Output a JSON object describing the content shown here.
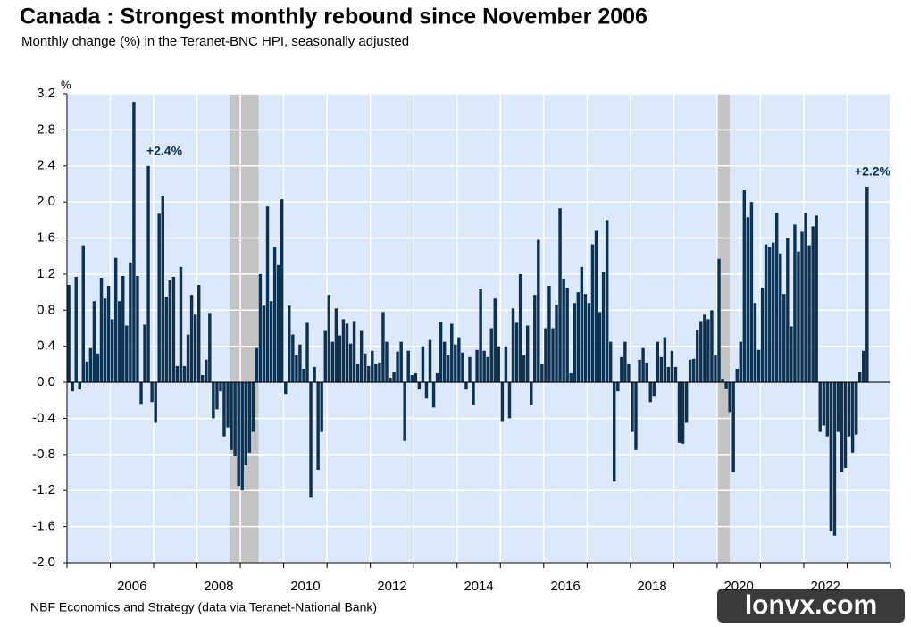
{
  "chart_data": {
    "type": "bar",
    "title": "Canada : Strongest monthly rebound since November 2006",
    "subtitle": "Monthly change (%) in the Teranet-BNC HPI, seasonally adjusted",
    "y_unit": "%",
    "source": "NBF Economics and Strategy (data via Teranet-National Bank)",
    "watermark": "lonvx.com",
    "color": "#0d3150",
    "background": "#dce9fa",
    "shade_color": "#c4c4c4",
    "shaded_periods": [
      [
        2008.75,
        2009.42
      ],
      [
        2020.0,
        2020.29
      ]
    ],
    "xlim": [
      2005,
      2024
    ],
    "ylim": [
      -2.0,
      3.2
    ],
    "yticks": [
      3.2,
      2.8,
      2.4,
      {
        "value": 2.0,
        "label": "2.0"
      },
      1.6,
      1.2,
      0.8,
      0.4,
      {
        "value": 0,
        "label": "0.0"
      },
      -0.4,
      -0.8,
      -1.2,
      -1.6,
      {
        "value": -2.0,
        "label": "-2.0"
      }
    ],
    "xticks": [
      {
        "value": 2006.5,
        "label": "2006"
      },
      {
        "value": 2008.5,
        "label": "2008"
      },
      {
        "value": 2010.5,
        "label": "2010"
      },
      {
        "value": 2012.5,
        "label": "2012"
      },
      {
        "value": 2014.5,
        "label": "2014"
      },
      {
        "value": 2016.5,
        "label": "2016"
      },
      {
        "value": 2018.5,
        "label": "2018"
      },
      {
        "value": 2020.5,
        "label": "2020"
      },
      {
        "value": 2022.5,
        "label": "2022"
      }
    ],
    "xgrid": [
      2005,
      2006,
      2007,
      2008,
      2009,
      2010,
      2011,
      2012,
      2013,
      2014,
      2015,
      2016,
      2017,
      2018,
      2019,
      2020,
      2021,
      2022,
      2023,
      2024
    ],
    "grid": true,
    "x": [
      2005,
      2005.083,
      2005.167,
      2005.25,
      2005.333,
      2005.417,
      2005.5,
      2005.583,
      2005.667,
      2005.75,
      2005.833,
      2005.917,
      2006,
      2006.083,
      2006.167,
      2006.25,
      2006.333,
      2006.417,
      2006.5,
      2006.583,
      2006.667,
      2006.75,
      2006.833,
      2006.917,
      2007,
      2007.083,
      2007.167,
      2007.25,
      2007.333,
      2007.417,
      2007.5,
      2007.583,
      2007.667,
      2007.75,
      2007.833,
      2007.917,
      2008,
      2008.083,
      2008.167,
      2008.25,
      2008.333,
      2008.417,
      2008.5,
      2008.583,
      2008.667,
      2008.75,
      2008.833,
      2008.917,
      2009,
      2009.083,
      2009.167,
      2009.25,
      2009.333,
      2009.417,
      2009.5,
      2009.583,
      2009.667,
      2009.75,
      2009.833,
      2009.917,
      2010,
      2010.083,
      2010.167,
      2010.25,
      2010.333,
      2010.417,
      2010.5,
      2010.583,
      2010.667,
      2010.75,
      2010.833,
      2010.917,
      2011,
      2011.083,
      2011.167,
      2011.25,
      2011.333,
      2011.417,
      2011.5,
      2011.583,
      2011.667,
      2011.75,
      2011.833,
      2011.917,
      2012,
      2012.083,
      2012.167,
      2012.25,
      2012.333,
      2012.417,
      2012.5,
      2012.583,
      2012.667,
      2012.75,
      2012.833,
      2012.917,
      2013,
      2013.083,
      2013.167,
      2013.25,
      2013.333,
      2013.417,
      2013.5,
      2013.583,
      2013.667,
      2013.75,
      2013.833,
      2013.917,
      2014,
      2014.083,
      2014.167,
      2014.25,
      2014.333,
      2014.417,
      2014.5,
      2014.583,
      2014.667,
      2014.75,
      2014.833,
      2014.917,
      2015,
      2015.083,
      2015.167,
      2015.25,
      2015.333,
      2015.417,
      2015.5,
      2015.583,
      2015.667,
      2015.75,
      2015.833,
      2015.917,
      2016,
      2016.083,
      2016.167,
      2016.25,
      2016.333,
      2016.417,
      2016.5,
      2016.583,
      2016.667,
      2016.75,
      2016.833,
      2016.917,
      2017,
      2017.083,
      2017.167,
      2017.25,
      2017.333,
      2017.417,
      2017.5,
      2017.583,
      2017.667,
      2017.75,
      2017.833,
      2017.917,
      2018,
      2018.083,
      2018.167,
      2018.25,
      2018.333,
      2018.417,
      2018.5,
      2018.583,
      2018.667,
      2018.75,
      2018.833,
      2018.917,
      2019,
      2019.083,
      2019.167,
      2019.25,
      2019.333,
      2019.417,
      2019.5,
      2019.583,
      2019.667,
      2019.75,
      2019.833,
      2019.917,
      2020,
      2020.083,
      2020.167,
      2020.25,
      2020.333,
      2020.417,
      2020.5,
      2020.583,
      2020.667,
      2020.75,
      2020.833,
      2020.917,
      2021,
      2021.083,
      2021.167,
      2021.25,
      2021.333,
      2021.417,
      2021.5,
      2021.583,
      2021.667,
      2021.75,
      2021.833,
      2021.917,
      2022,
      2022.083,
      2022.167,
      2022.25,
      2022.333,
      2022.417,
      2022.5,
      2022.583,
      2022.667,
      2022.75,
      2022.833,
      2022.917,
      2023,
      2023.083,
      2023.167,
      2023.25,
      2023.333,
      2023.417
    ],
    "values": [
      1.08,
      -0.1,
      1.17,
      -0.08,
      1.52,
      0.23,
      0.38,
      0.9,
      0.32,
      1.16,
      0.93,
      1.07,
      0.7,
      1.38,
      0.9,
      1.18,
      0.63,
      1.33,
      3.11,
      1.18,
      -0.24,
      0.64,
      2.4,
      -0.22,
      -0.45,
      1.87,
      2.07,
      0.95,
      1.13,
      1.17,
      0.18,
      1.28,
      0.18,
      0.53,
      0.97,
      0.75,
      1.08,
      0.08,
      0.25,
      0.77,
      -0.4,
      -0.3,
      -0.1,
      -0.6,
      -0.5,
      -0.75,
      -0.82,
      -1.15,
      -1.2,
      -0.92,
      -0.78,
      -0.55,
      0.38,
      1.2,
      0.85,
      1.95,
      0.9,
      1.5,
      1.3,
      2.03,
      -0.13,
      0.85,
      0.53,
      0.3,
      0.42,
      0.15,
      0.66,
      -1.28,
      0.17,
      -0.97,
      -0.55,
      0.57,
      0.97,
      0.45,
      0.82,
      0.52,
      0.7,
      0.65,
      0.43,
      0.68,
      0.2,
      0.57,
      0.32,
      0.18,
      0.35,
      0.2,
      0.22,
      0.78,
      0.45,
      0.05,
      0.12,
      0.34,
      0.45,
      -0.65,
      0.35,
      0.08,
      0.1,
      -0.08,
      0.4,
      -0.18,
      0.47,
      -0.28,
      0.1,
      0.67,
      0.45,
      0.3,
      0.65,
      0.42,
      0.5,
      0.33,
      -0.08,
      0.28,
      -0.25,
      0.36,
      1.03,
      0.35,
      0.28,
      0.6,
      0.93,
      0.4,
      -0.43,
      0.4,
      -0.4,
      0.82,
      0.66,
      1.2,
      0.3,
      0.63,
      -0.25,
      0.97,
      1.58,
      0.2,
      0.6,
      1.07,
      0.6,
      0.86,
      1.93,
      1.15,
      1.05,
      0.1,
      0.88,
      1.0,
      1.28,
      0.98,
      0.88,
      1.53,
      1.68,
      0.78,
      1.22,
      1.8,
      0.45,
      -1.1,
      -0.1,
      0.28,
      0.45,
      0.2,
      -0.55,
      -0.75,
      0.25,
      0.38,
      0.22,
      -0.22,
      -0.15,
      0.45,
      0.28,
      0.5,
      0.17,
      0.35,
      0.17,
      -0.67,
      -0.68,
      -0.45,
      0.25,
      0.26,
      0.58,
      0.68,
      0.75,
      0.7,
      0.8,
      0.3,
      1.37,
      0.04,
      -0.07,
      -0.33,
      -1.0,
      0.15,
      0.45,
      2.13,
      1.83,
      2.0,
      0.88,
      0.36,
      1.05,
      1.53,
      1.5,
      1.55,
      1.88,
      1.43,
      0.98,
      1.6,
      0.62,
      1.75,
      1.45,
      1.67,
      1.88,
      1.52,
      1.73,
      1.85,
      -0.55,
      -0.48,
      -0.6,
      -1.65,
      -1.7,
      -0.55,
      -1.0,
      -0.95,
      -0.6,
      -0.78,
      -0.58,
      0.12,
      0.35,
      2.17
    ],
    "value_labels": [
      null,
      null,
      null,
      null,
      null,
      null,
      null,
      null,
      null,
      null,
      null,
      null,
      null,
      null,
      null,
      null,
      null,
      null,
      null,
      null,
      null,
      null,
      "+2.4%",
      null,
      null,
      null,
      null,
      null,
      null,
      null,
      null,
      null,
      null,
      null,
      null,
      null,
      null,
      null,
      null,
      null,
      null,
      null,
      null,
      null,
      null,
      null,
      null,
      null,
      null,
      null,
      null,
      null,
      null,
      null,
      null,
      null,
      null,
      null,
      null,
      null,
      null,
      null,
      null,
      null,
      null,
      null,
      null,
      null,
      null,
      null,
      null,
      null,
      null,
      null,
      null,
      null,
      null,
      null,
      null,
      null,
      null,
      null,
      null,
      null,
      null,
      null,
      null,
      null,
      null,
      null,
      null,
      null,
      null,
      null,
      null,
      null,
      null,
      null,
      null,
      null,
      null,
      null,
      null,
      null,
      null,
      null,
      null,
      null,
      null,
      null,
      null,
      null,
      null,
      null,
      null,
      null,
      null,
      null,
      null,
      null,
      null,
      null,
      null,
      null,
      null,
      null,
      null,
      null,
      null,
      null,
      null,
      null,
      null,
      null,
      null,
      null,
      null,
      null,
      null,
      null,
      null,
      null,
      null,
      null,
      null,
      null,
      null,
      null,
      null,
      null,
      null,
      null,
      null,
      null,
      null,
      null,
      null,
      null,
      null,
      null,
      null,
      null,
      null,
      null,
      null,
      null,
      null,
      null,
      null,
      null,
      null,
      null,
      null,
      null,
      null,
      null,
      null,
      null,
      null,
      null,
      null,
      null,
      null,
      null,
      null,
      null,
      null,
      null,
      null,
      null,
      null,
      null,
      null,
      null,
      null,
      null,
      null,
      null,
      null,
      null,
      null,
      null,
      null,
      null,
      null,
      null,
      null,
      null,
      null,
      null,
      null,
      null,
      null,
      null,
      null,
      null,
      null,
      null,
      null,
      null,
      null,
      "+2.2%"
    ]
  }
}
